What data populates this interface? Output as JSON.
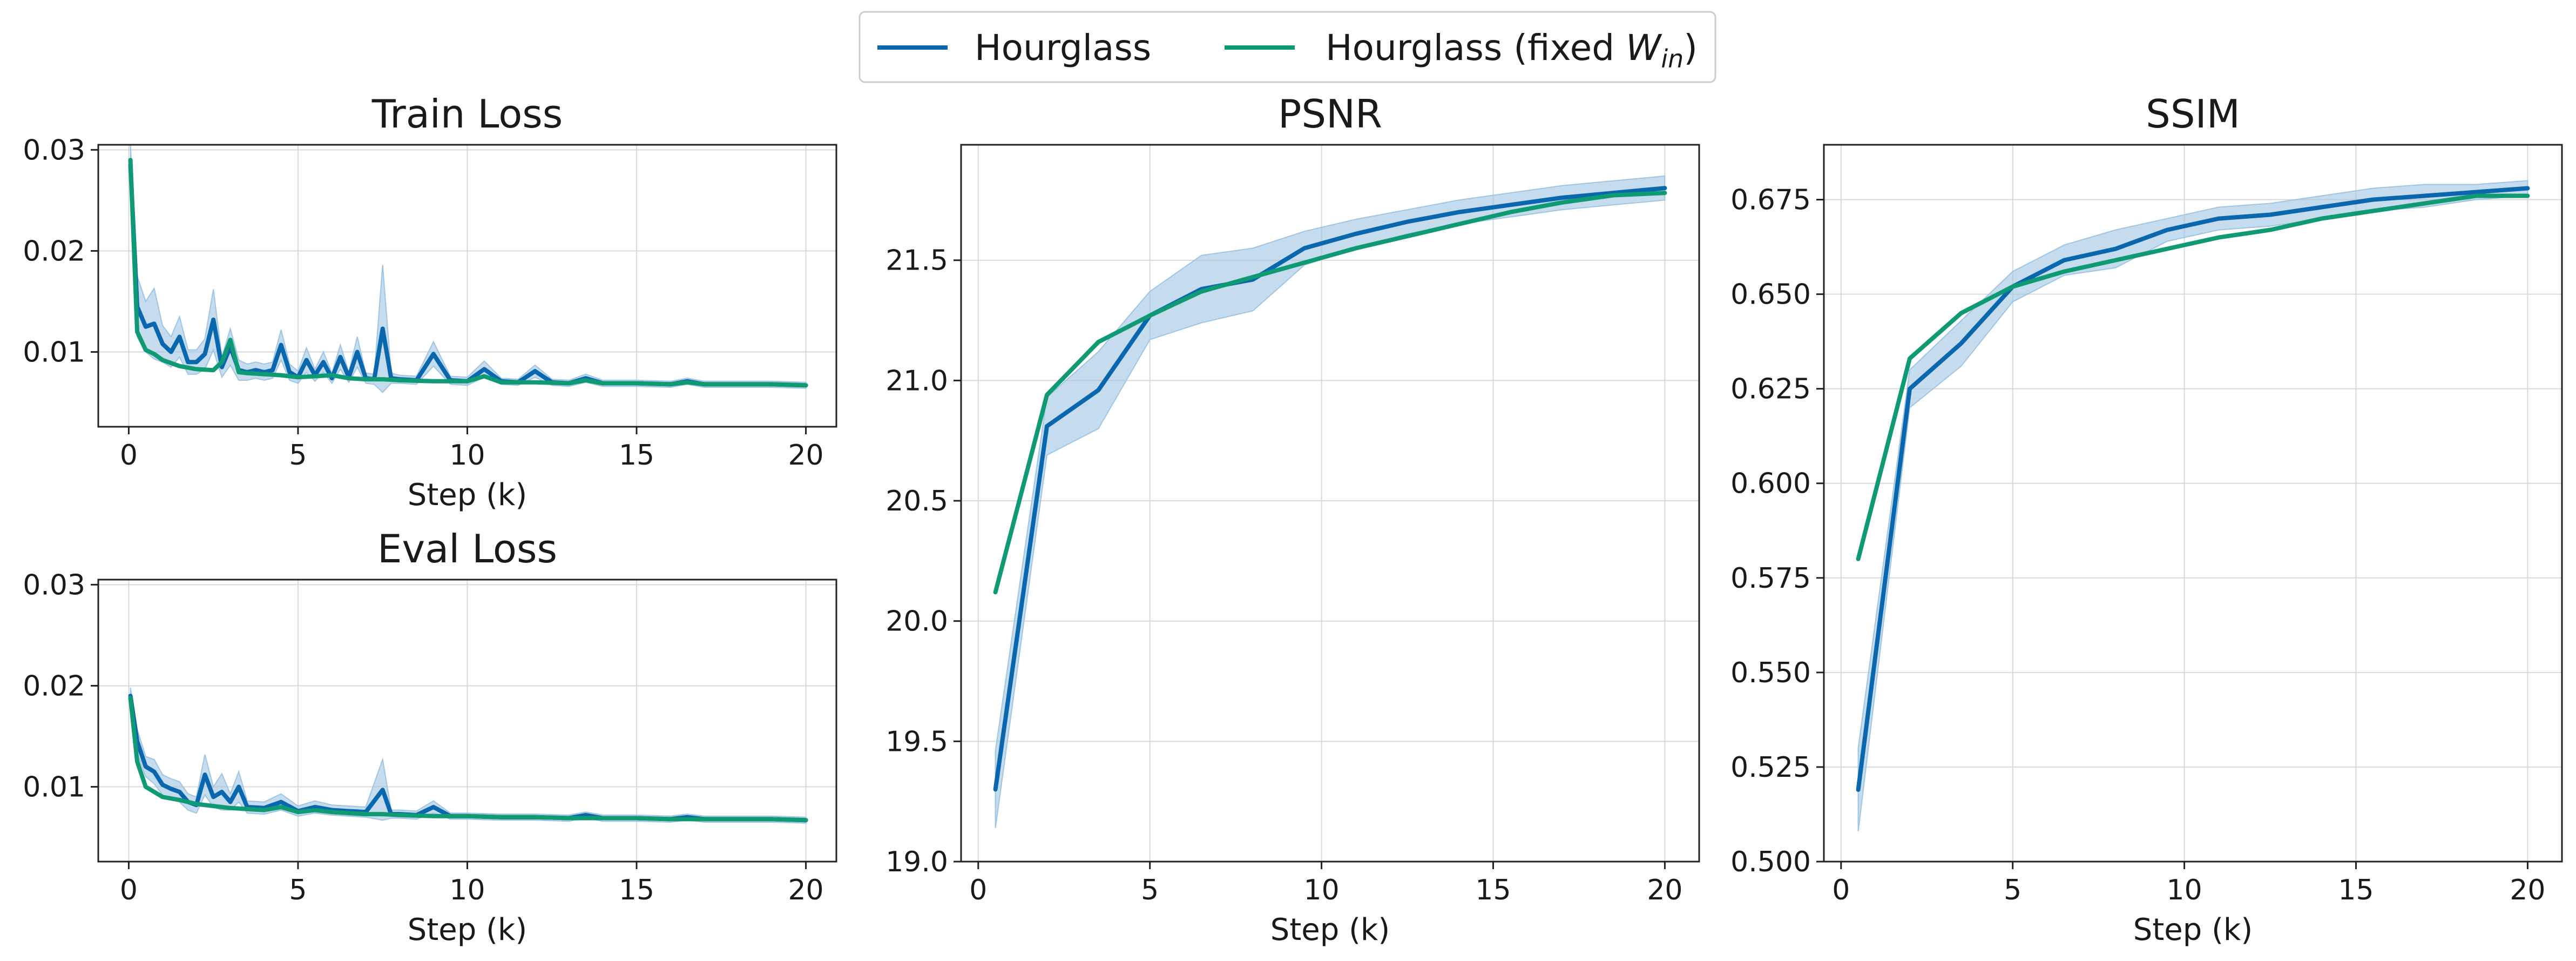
{
  "colors": {
    "hourglass": "#0a66ad",
    "hourglass_fixed": "#0f9a73",
    "band": "#9ec5e3"
  },
  "legend": {
    "items": [
      {
        "key": "hourglass",
        "label": "Hourglass"
      },
      {
        "key": "hourglass_fixed",
        "label": "Hourglass (fixed ",
        "math": "W",
        "math_sub": "in",
        "suffix": ")"
      }
    ]
  },
  "chart_data": [
    {
      "id": "train",
      "type": "line",
      "title": "Train Loss",
      "xlabel": "Step (k)",
      "ylabel": "",
      "xlim": [
        -0.9,
        20.9
      ],
      "ylim": [
        0.0026,
        0.0305
      ],
      "xticks": [
        0,
        5,
        10,
        15,
        20
      ],
      "yticks": [
        0.01,
        0.02,
        0.03
      ],
      "ytick_labels": [
        "0.01",
        "0.02",
        "0.03"
      ],
      "grid": true,
      "series": [
        {
          "key": "hourglass",
          "x": [
            0.05,
            0.25,
            0.5,
            0.75,
            1.0,
            1.25,
            1.5,
            1.75,
            2.0,
            2.25,
            2.5,
            2.75,
            3.0,
            3.25,
            3.5,
            3.75,
            4.0,
            4.25,
            4.5,
            4.75,
            5.0,
            5.25,
            5.5,
            5.75,
            6.0,
            6.25,
            6.5,
            6.75,
            7.0,
            7.25,
            7.5,
            7.75,
            8.0,
            8.5,
            9.0,
            9.5,
            10.0,
            10.5,
            11.0,
            11.5,
            12.0,
            12.5,
            13.0,
            13.5,
            14.0,
            15.0,
            16.0,
            16.5,
            17.0,
            18.0,
            19.0,
            20.0
          ],
          "y": [
            0.0285,
            0.0145,
            0.0125,
            0.0128,
            0.0108,
            0.01,
            0.0115,
            0.009,
            0.009,
            0.0098,
            0.0132,
            0.0085,
            0.0105,
            0.0082,
            0.008,
            0.0082,
            0.008,
            0.0082,
            0.0107,
            0.008,
            0.0075,
            0.0092,
            0.0077,
            0.009,
            0.0074,
            0.0095,
            0.0075,
            0.01,
            0.0074,
            0.0073,
            0.0123,
            0.0074,
            0.0073,
            0.0072,
            0.0098,
            0.0072,
            0.0071,
            0.0083,
            0.0071,
            0.007,
            0.0081,
            0.007,
            0.0069,
            0.0074,
            0.0069,
            0.0069,
            0.0068,
            0.0071,
            0.0068,
            0.0068,
            0.0068,
            0.0067
          ],
          "band": [
            0.002,
            0.003,
            0.0025,
            0.0035,
            0.0018,
            0.0015,
            0.002,
            0.0012,
            0.0012,
            0.0015,
            0.003,
            0.001,
            0.0018,
            0.001,
            0.0008,
            0.0008,
            0.0008,
            0.0008,
            0.0015,
            0.0008,
            0.0006,
            0.0012,
            0.0006,
            0.001,
            0.0005,
            0.0012,
            0.0005,
            0.0015,
            0.0005,
            0.0005,
            0.0063,
            0.0005,
            0.0004,
            0.0004,
            0.0012,
            0.0004,
            0.0004,
            0.0008,
            0.0003,
            0.0003,
            0.0006,
            0.0003,
            0.0003,
            0.0004,
            0.0003,
            0.0003,
            0.0003,
            0.0003,
            0.0003,
            0.0003,
            0.0003,
            0.0003
          ]
        },
        {
          "key": "hourglass_fixed",
          "x": [
            0.05,
            0.25,
            0.5,
            0.75,
            1.0,
            1.5,
            2.0,
            2.5,
            2.75,
            3.0,
            3.25,
            3.5,
            4.0,
            4.5,
            5.0,
            5.5,
            6.0,
            6.5,
            7.0,
            7.5,
            8.0,
            9.0,
            10.0,
            10.5,
            11.0,
            12.0,
            13.0,
            13.5,
            14.0,
            15.0,
            16.0,
            16.5,
            17.0,
            18.0,
            19.0,
            20.0
          ],
          "y": [
            0.029,
            0.012,
            0.0102,
            0.0098,
            0.0092,
            0.0086,
            0.0083,
            0.0082,
            0.009,
            0.0112,
            0.008,
            0.0079,
            0.0078,
            0.0077,
            0.0075,
            0.0076,
            0.0077,
            0.0074,
            0.0073,
            0.0073,
            0.0072,
            0.0071,
            0.0071,
            0.0076,
            0.007,
            0.007,
            0.0069,
            0.0072,
            0.0069,
            0.0069,
            0.0068,
            0.007,
            0.0068,
            0.0068,
            0.0068,
            0.0067
          ]
        }
      ]
    },
    {
      "id": "eval",
      "type": "line",
      "title": "Eval Loss",
      "xlabel": "Step (k)",
      "ylabel": "",
      "xlim": [
        -0.9,
        20.9
      ],
      "ylim": [
        0.0026,
        0.0305
      ],
      "xticks": [
        0,
        5,
        10,
        15,
        20
      ],
      "yticks": [
        0.01,
        0.02,
        0.03
      ],
      "ytick_labels": [
        "0.01",
        "0.02",
        "0.03"
      ],
      "grid": true,
      "series": [
        {
          "key": "hourglass",
          "x": [
            0.05,
            0.25,
            0.5,
            0.75,
            1.0,
            1.25,
            1.5,
            1.75,
            2.0,
            2.25,
            2.5,
            2.75,
            3.0,
            3.25,
            3.5,
            4.0,
            4.5,
            5.0,
            5.5,
            6.0,
            6.5,
            7.0,
            7.5,
            7.75,
            8.0,
            8.5,
            9.0,
            9.5,
            10.0,
            11.0,
            12.0,
            13.0,
            13.5,
            14.0,
            15.0,
            16.0,
            16.5,
            17.0,
            18.0,
            19.0,
            20.0
          ],
          "y": [
            0.019,
            0.0145,
            0.012,
            0.0115,
            0.0102,
            0.0098,
            0.0095,
            0.0085,
            0.0082,
            0.0112,
            0.009,
            0.0095,
            0.0085,
            0.01,
            0.008,
            0.0079,
            0.0085,
            0.0076,
            0.008,
            0.0077,
            0.0076,
            0.0075,
            0.0097,
            0.0073,
            0.0073,
            0.0072,
            0.008,
            0.0071,
            0.0071,
            0.007,
            0.007,
            0.0069,
            0.0072,
            0.0069,
            0.0069,
            0.0068,
            0.007,
            0.0068,
            0.0068,
            0.0068,
            0.0067
          ],
          "band": [
            0.0008,
            0.0012,
            0.001,
            0.0012,
            0.001,
            0.001,
            0.001,
            0.0008,
            0.0008,
            0.002,
            0.001,
            0.0018,
            0.0008,
            0.0015,
            0.0006,
            0.0006,
            0.0008,
            0.0005,
            0.0006,
            0.0005,
            0.0005,
            0.0005,
            0.003,
            0.0004,
            0.0004,
            0.0004,
            0.0006,
            0.0003,
            0.0003,
            0.0003,
            0.0003,
            0.0003,
            0.0003,
            0.0003,
            0.0003,
            0.0003,
            0.0003,
            0.0003,
            0.0003,
            0.0003,
            0.0003
          ]
        },
        {
          "key": "hourglass_fixed",
          "x": [
            0.05,
            0.25,
            0.5,
            0.75,
            1.0,
            1.5,
            2.0,
            2.5,
            3.0,
            3.5,
            4.0,
            4.5,
            5.0,
            5.5,
            6.0,
            6.5,
            7.0,
            7.5,
            8.0,
            9.0,
            10.0,
            11.0,
            12.0,
            13.0,
            14.0,
            15.0,
            16.0,
            17.0,
            18.0,
            19.0,
            20.0
          ],
          "y": [
            0.0188,
            0.0125,
            0.01,
            0.0095,
            0.009,
            0.0087,
            0.0083,
            0.0081,
            0.0079,
            0.0078,
            0.0077,
            0.008,
            0.0075,
            0.0077,
            0.0075,
            0.0074,
            0.0073,
            0.0073,
            0.0072,
            0.0071,
            0.0071,
            0.007,
            0.007,
            0.0069,
            0.0069,
            0.0069,
            0.0068,
            0.0068,
            0.0068,
            0.0068,
            0.0067
          ]
        }
      ]
    },
    {
      "id": "psnr",
      "type": "line",
      "title": "PSNR",
      "xlabel": "Step (k)",
      "ylabel": "",
      "xlim": [
        -0.5,
        21.0
      ],
      "ylim": [
        19.0,
        21.98
      ],
      "xticks": [
        0,
        5,
        10,
        15,
        20
      ],
      "yticks": [
        19.0,
        19.5,
        20.0,
        20.5,
        21.0,
        21.5
      ],
      "ytick_labels": [
        "19.0",
        "19.5",
        "20.0",
        "20.5",
        "21.0",
        "21.5"
      ],
      "grid": true,
      "series": [
        {
          "key": "hourglass",
          "x": [
            0.5,
            2.0,
            3.5,
            5.0,
            6.5,
            8.0,
            9.5,
            11.0,
            12.5,
            14.0,
            15.5,
            17.0,
            18.5,
            20.0
          ],
          "y": [
            19.3,
            20.81,
            20.96,
            21.27,
            21.38,
            21.42,
            21.55,
            21.61,
            21.66,
            21.7,
            21.73,
            21.76,
            21.78,
            21.8
          ],
          "band": [
            0.16,
            0.12,
            0.16,
            0.1,
            0.14,
            0.13,
            0.07,
            0.06,
            0.05,
            0.05,
            0.05,
            0.05,
            0.05,
            0.05
          ]
        },
        {
          "key": "hourglass_fixed",
          "x": [
            0.5,
            2.0,
            3.5,
            5.0,
            6.5,
            8.0,
            9.5,
            11.0,
            12.5,
            14.0,
            15.5,
            17.0,
            18.5,
            20.0
          ],
          "y": [
            20.12,
            20.94,
            21.16,
            21.27,
            21.37,
            21.43,
            21.49,
            21.55,
            21.6,
            21.65,
            21.7,
            21.74,
            21.77,
            21.78
          ]
        }
      ]
    },
    {
      "id": "ssim",
      "type": "line",
      "title": "SSIM",
      "xlabel": "Step (k)",
      "ylabel": "",
      "xlim": [
        -0.5,
        21.0
      ],
      "ylim": [
        0.5,
        0.6895
      ],
      "xticks": [
        0,
        5,
        10,
        15,
        20
      ],
      "yticks": [
        0.5,
        0.525,
        0.55,
        0.575,
        0.6,
        0.625,
        0.65,
        0.675
      ],
      "ytick_labels": [
        "0.500",
        "0.525",
        "0.550",
        "0.575",
        "0.600",
        "0.625",
        "0.650",
        "0.675"
      ],
      "grid": true,
      "series": [
        {
          "key": "hourglass",
          "x": [
            0.5,
            2.0,
            3.5,
            5.0,
            6.5,
            8.0,
            9.5,
            11.0,
            12.5,
            14.0,
            15.5,
            17.0,
            18.5,
            20.0
          ],
          "y": [
            0.519,
            0.625,
            0.637,
            0.652,
            0.659,
            0.662,
            0.667,
            0.67,
            0.671,
            0.673,
            0.675,
            0.676,
            0.677,
            0.678
          ],
          "band": [
            0.011,
            0.005,
            0.006,
            0.004,
            0.004,
            0.005,
            0.003,
            0.003,
            0.003,
            0.003,
            0.003,
            0.003,
            0.002,
            0.002
          ]
        },
        {
          "key": "hourglass_fixed",
          "x": [
            0.5,
            2.0,
            3.5,
            5.0,
            6.5,
            8.0,
            9.5,
            11.0,
            12.5,
            14.0,
            15.5,
            17.0,
            18.5,
            20.0
          ],
          "y": [
            0.58,
            0.633,
            0.645,
            0.652,
            0.656,
            0.659,
            0.662,
            0.665,
            0.667,
            0.67,
            0.672,
            0.674,
            0.676,
            0.676
          ]
        }
      ]
    }
  ]
}
